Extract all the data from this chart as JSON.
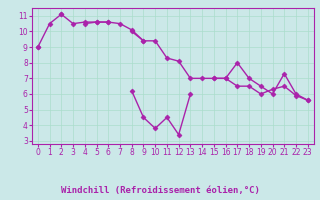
{
  "xlabel": "Windchill (Refroidissement éolien,°C)",
  "background_color": "#cbe8e8",
  "line_color": "#aa22aa",
  "spine_color": "#aa22aa",
  "bar_color": "#6633aa",
  "x_values": [
    0,
    1,
    2,
    3,
    4,
    5,
    6,
    7,
    8,
    9,
    10,
    11,
    12,
    13,
    14,
    15,
    16,
    17,
    18,
    19,
    20,
    21,
    22,
    23
  ],
  "series1": [
    9.0,
    10.5,
    11.1,
    null,
    10.5,
    10.6,
    10.6,
    null,
    10.0,
    9.4,
    null,
    null,
    null,
    null,
    null,
    null,
    null,
    null,
    null,
    null,
    null,
    null,
    null,
    null
  ],
  "series2": [
    9.0,
    null,
    11.1,
    10.5,
    10.6,
    10.6,
    10.6,
    10.5,
    10.1,
    9.4,
    9.4,
    8.3,
    8.1,
    7.0,
    7.0,
    7.0,
    7.0,
    6.5,
    6.5,
    6.0,
    6.3,
    6.5,
    5.9,
    5.6
  ],
  "series3": [
    null,
    null,
    null,
    null,
    null,
    null,
    null,
    null,
    6.2,
    4.5,
    3.8,
    4.5,
    3.4,
    6.0,
    null,
    7.0,
    7.0,
    8.0,
    7.0,
    6.5,
    6.0,
    7.3,
    6.0,
    5.6
  ],
  "ylim": [
    2.8,
    11.5
  ],
  "xlim": [
    -0.5,
    23.5
  ],
  "yticks": [
    3,
    4,
    5,
    6,
    7,
    8,
    9,
    10,
    11
  ],
  "xticks": [
    0,
    1,
    2,
    3,
    4,
    5,
    6,
    7,
    8,
    9,
    10,
    11,
    12,
    13,
    14,
    15,
    16,
    17,
    18,
    19,
    20,
    21,
    22,
    23
  ],
  "grid_color": "#aaddcc",
  "marker": "D",
  "markersize": 2.5,
  "linewidth": 1.0,
  "tick_fontsize": 5.5,
  "xlabel_fontsize": 6.5
}
